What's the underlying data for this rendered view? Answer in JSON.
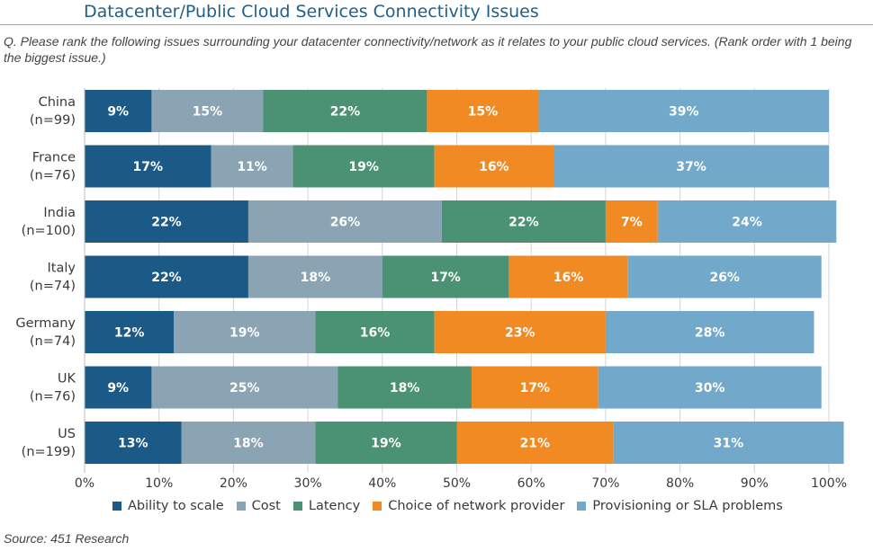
{
  "header": {
    "title": "Datacenter/Public Cloud Services Connectivity Issues",
    "question": "Q. Please rank the following issues surrounding your datacenter connectivity/network as it relates to your public cloud services. (Rank order with 1 being the biggest issue.)",
    "source": "Source: 451 Research"
  },
  "chart_data": {
    "type": "bar",
    "orientation": "horizontal",
    "stacked": true,
    "title": "Datacenter/Public Cloud Services Connectivity Issues",
    "categories": [
      [
        "China",
        "(n=99)"
      ],
      [
        "France",
        "(n=76)"
      ],
      [
        "India",
        "(n=100)"
      ],
      [
        "Italy",
        "(n=74)"
      ],
      [
        "Germany",
        "(n=74)"
      ],
      [
        "UK",
        "(n=76)"
      ],
      [
        "US",
        "(n=199)"
      ]
    ],
    "series": [
      {
        "name": "Ability to scale",
        "color": "#1b5a86",
        "values": [
          9,
          17,
          22,
          22,
          12,
          9,
          13
        ]
      },
      {
        "name": "Cost",
        "color": "#8aa4b4",
        "values": [
          15,
          11,
          26,
          18,
          19,
          25,
          18
        ]
      },
      {
        "name": "Latency",
        "color": "#4a9273",
        "values": [
          22,
          19,
          22,
          17,
          16,
          18,
          19
        ]
      },
      {
        "name": "Choice of network provider",
        "color": "#f28a24",
        "values": [
          15,
          16,
          7,
          16,
          23,
          17,
          21
        ]
      },
      {
        "name": "Provisioning or SLA problems",
        "color": "#72a8c9",
        "values": [
          39,
          37,
          24,
          26,
          28,
          30,
          31
        ]
      }
    ],
    "xlim": [
      0,
      100
    ],
    "xticks": [
      "0%",
      "10%",
      "20%",
      "30%",
      "40%",
      "50%",
      "60%",
      "70%",
      "80%",
      "90%",
      "100%"
    ],
    "grid": "vertical",
    "legend_position": "bottom"
  }
}
